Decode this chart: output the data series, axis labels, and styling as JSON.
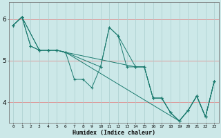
{
  "title": "",
  "xlabel": "Humidex (Indice chaleur)",
  "ylabel": "",
  "background_color": "#cce8e8",
  "line_color": "#1a7a6e",
  "xlim": [
    -0.5,
    23.5
  ],
  "ylim": [
    3.5,
    6.4
  ],
  "yticks": [
    4,
    5,
    6
  ],
  "xticks": [
    0,
    1,
    2,
    3,
    4,
    5,
    6,
    7,
    8,
    9,
    10,
    11,
    12,
    13,
    14,
    15,
    16,
    17,
    18,
    19,
    20,
    21,
    22,
    23
  ],
  "hgrid_color": "#dd9999",
  "vgrid_color": "#aacece",
  "series": [
    {
      "x": [
        0,
        1,
        2,
        3,
        4,
        5,
        6,
        7,
        8,
        9,
        10,
        11,
        12,
        13,
        14,
        15,
        16,
        17,
        18,
        19,
        20,
        21,
        22,
        23
      ],
      "y": [
        5.85,
        6.05,
        5.35,
        5.25,
        5.25,
        5.25,
        5.2,
        4.55,
        4.55,
        4.35,
        4.85,
        5.8,
        5.6,
        4.85,
        4.85,
        4.85,
        4.1,
        4.1,
        3.75,
        3.55,
        3.8,
        4.15,
        3.65,
        4.5
      ]
    },
    {
      "x": [
        0,
        1,
        2,
        3,
        4,
        5,
        6,
        10,
        11,
        12,
        14,
        15,
        16,
        17,
        18,
        19,
        20,
        21,
        22,
        23
      ],
      "y": [
        5.85,
        6.05,
        5.35,
        5.25,
        5.25,
        5.25,
        5.2,
        4.85,
        5.8,
        5.6,
        4.85,
        4.85,
        4.1,
        4.1,
        3.75,
        3.55,
        3.8,
        4.15,
        3.65,
        4.5
      ]
    },
    {
      "x": [
        0,
        1,
        3,
        4,
        5,
        6,
        14,
        15,
        16,
        17,
        18,
        19,
        20,
        21,
        22,
        23
      ],
      "y": [
        5.85,
        6.05,
        5.25,
        5.25,
        5.25,
        5.2,
        4.85,
        4.85,
        4.1,
        4.1,
        3.75,
        3.55,
        3.8,
        4.15,
        3.65,
        4.5
      ]
    },
    {
      "x": [
        0,
        1,
        3,
        4,
        5,
        6,
        19,
        20,
        21,
        22,
        23
      ],
      "y": [
        5.85,
        6.05,
        5.25,
        5.25,
        5.25,
        5.2,
        3.55,
        3.8,
        4.15,
        3.65,
        4.5
      ]
    }
  ]
}
